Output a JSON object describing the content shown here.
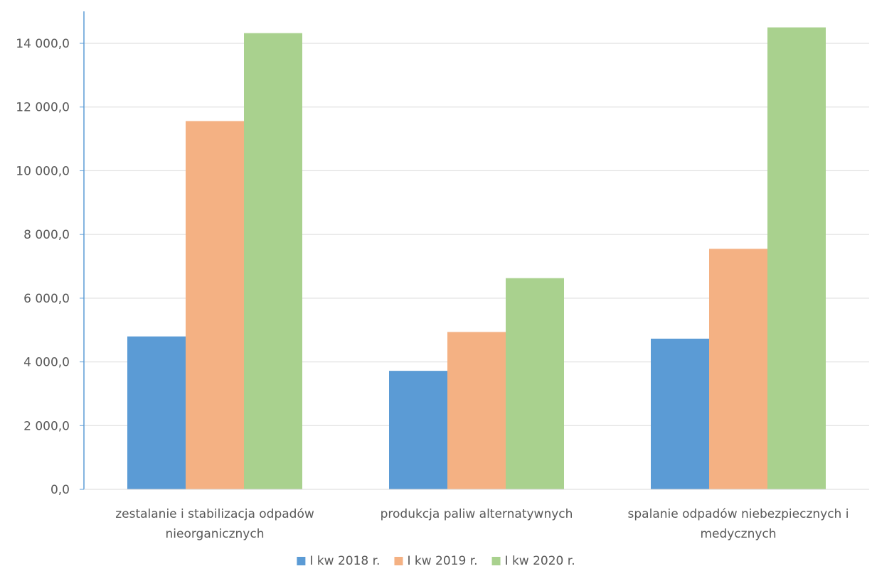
{
  "chart_data": {
    "type": "bar",
    "categories": [
      [
        "zestalanie i stabilizacja odpadów",
        "nieorganicznych"
      ],
      [
        "produkcja paliw alternatywnych"
      ],
      [
        "spalanie odpadów niebezpiecznych i",
        "medycznych"
      ]
    ],
    "series": [
      {
        "name": "I kw 2018 r.",
        "color": "#5b9bd5",
        "values": [
          4800,
          3720,
          4730
        ]
      },
      {
        "name": "I kw 2019 r.",
        "color": "#f4b183",
        "values": [
          11560,
          4940,
          7550
        ]
      },
      {
        "name": "I kw 2020 r.",
        "color": "#a9d18e",
        "values": [
          14320,
          6630,
          14500
        ]
      }
    ],
    "ylim": [
      0,
      14000
    ],
    "yticks": [
      0,
      2000,
      4000,
      6000,
      8000,
      10000,
      12000,
      14000
    ],
    "ytick_labels": [
      "0,0",
      "2 000,0",
      "4 000,0",
      "6 000,0",
      "8 000,0",
      "10 000,0",
      "12 000,0",
      "14 000,0"
    ],
    "grid": true,
    "legend_position": "bottom",
    "title": "",
    "xlabel": "",
    "ylabel": ""
  }
}
